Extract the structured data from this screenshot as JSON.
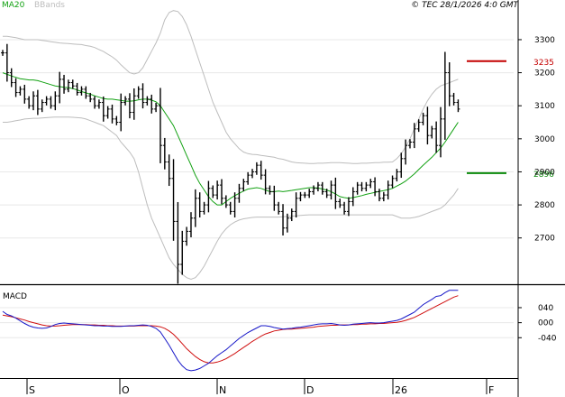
{
  "chart_data": [
    {
      "type": "ohlc",
      "title": "",
      "copyright": "© TEC 28/1/2026 4:0 GMT",
      "legend": [
        {
          "label": "MA20",
          "color": "#12a112"
        },
        {
          "label": "BBands",
          "color": "#bdbdbd"
        }
      ],
      "y_ticks": [
        2700,
        2800,
        2900,
        3000,
        3100,
        3200,
        3300
      ],
      "ylim": [
        2560,
        3420
      ],
      "levels": [
        {
          "label": "3235",
          "value": 3235,
          "color": "#c40000"
        },
        {
          "label": "2896",
          "value": 2896,
          "color": "#0a8a0a"
        }
      ],
      "x_ticks": [
        "S",
        "O",
        "N",
        "D",
        "26",
        "F"
      ],
      "series": [
        {
          "name": "price",
          "color": "#000000",
          "close": [
            3260,
            3200,
            3170,
            3140,
            3150,
            3120,
            3100,
            3130,
            3090,
            3110,
            3120,
            3100,
            3130,
            3180,
            3150,
            3170,
            3160,
            3140,
            3150,
            3130,
            3120,
            3100,
            3110,
            3070,
            3090,
            3060,
            3050,
            3110,
            3120,
            3080,
            3130,
            3150,
            3110,
            3120,
            3090,
            3100,
            2980,
            2930,
            2880,
            2750,
            2620,
            2690,
            2720,
            2760,
            2820,
            2780,
            2800,
            2850,
            2830,
            2860,
            2820,
            2800,
            2780,
            2820,
            2850,
            2870,
            2890,
            2900,
            2920,
            2890,
            2850,
            2840,
            2800,
            2780,
            2730,
            2760,
            2780,
            2820,
            2830,
            2830,
            2840,
            2850,
            2860,
            2840,
            2830,
            2860,
            2810,
            2800,
            2780,
            2810,
            2840,
            2860,
            2850,
            2860,
            2870,
            2840,
            2820,
            2830,
            2860,
            2880,
            2900,
            2940,
            2980,
            2990,
            3030,
            3050,
            3070,
            3010,
            3030,
            2980,
            3060,
            3200,
            3130,
            3110,
            3090
          ]
        },
        {
          "name": "MA20",
          "color": "#12a112",
          "values": [
            3200,
            3195,
            3190,
            3186,
            3182,
            3180,
            3178,
            3178,
            3176,
            3172,
            3168,
            3164,
            3160,
            3158,
            3156,
            3155,
            3152,
            3148,
            3143,
            3139,
            3135,
            3130,
            3126,
            3122,
            3120,
            3120,
            3118,
            3116,
            3114,
            3114,
            3115,
            3118,
            3120,
            3120,
            3117,
            3112,
            3100,
            3080,
            3060,
            3040,
            3010,
            2980,
            2950,
            2920,
            2890,
            2865,
            2845,
            2825,
            2810,
            2800,
            2800,
            2810,
            2820,
            2828,
            2835,
            2842,
            2848,
            2850,
            2852,
            2850,
            2845,
            2840,
            2840,
            2842,
            2840,
            2842,
            2844,
            2846,
            2848,
            2850,
            2852,
            2852,
            2851,
            2848,
            2845,
            2840,
            2833,
            2825,
            2822,
            2820,
            2822,
            2825,
            2828,
            2832,
            2835,
            2838,
            2841,
            2843,
            2846,
            2850,
            2857,
            2864,
            2872,
            2883,
            2894,
            2907,
            2920,
            2932,
            2944,
            2958,
            2972,
            2990,
            3010,
            3030,
            3050
          ]
        },
        {
          "name": "BBands upper",
          "color": "#bdbdbd",
          "values": [
            3310,
            3310,
            3308,
            3306,
            3303,
            3300,
            3300,
            3300,
            3300,
            3298,
            3296,
            3294,
            3292,
            3290,
            3289,
            3288,
            3287,
            3286,
            3285,
            3282,
            3280,
            3276,
            3270,
            3264,
            3256,
            3248,
            3238,
            3224,
            3212,
            3200,
            3196,
            3200,
            3215,
            3240,
            3265,
            3290,
            3320,
            3360,
            3382,
            3388,
            3385,
            3370,
            3345,
            3310,
            3270,
            3230,
            3190,
            3150,
            3110,
            3080,
            3050,
            3020,
            3000,
            2985,
            2970,
            2960,
            2955,
            2953,
            2952,
            2950,
            2948,
            2946,
            2944,
            2940,
            2938,
            2934,
            2930,
            2928,
            2927,
            2926,
            2925,
            2925,
            2926,
            2926,
            2927,
            2928,
            2928,
            2928,
            2927,
            2926,
            2925,
            2925,
            2926,
            2926,
            2927,
            2928,
            2928,
            2929,
            2929,
            2930,
            2940,
            2955,
            2975,
            3000,
            3030,
            3060,
            3090,
            3115,
            3135,
            3150,
            3160,
            3165,
            3170,
            3175,
            3180
          ]
        },
        {
          "name": "BBands lower",
          "color": "#bdbdbd",
          "values": [
            3050,
            3050,
            3052,
            3055,
            3057,
            3060,
            3061,
            3062,
            3062,
            3063,
            3064,
            3065,
            3066,
            3066,
            3066,
            3066,
            3065,
            3064,
            3063,
            3060,
            3055,
            3050,
            3045,
            3040,
            3030,
            3020,
            3010,
            2990,
            2975,
            2960,
            2940,
            2900,
            2850,
            2800,
            2760,
            2730,
            2700,
            2670,
            2640,
            2620,
            2605,
            2590,
            2580,
            2575,
            2580,
            2595,
            2615,
            2640,
            2665,
            2690,
            2712,
            2728,
            2740,
            2748,
            2754,
            2758,
            2760,
            2762,
            2763,
            2763,
            2763,
            2763,
            2763,
            2763,
            2764,
            2765,
            2766,
            2767,
            2768,
            2769,
            2770,
            2770,
            2770,
            2770,
            2770,
            2770,
            2770,
            2770,
            2770,
            2770,
            2770,
            2770,
            2770,
            2770,
            2770,
            2770,
            2770,
            2770,
            2770,
            2770,
            2765,
            2760,
            2760,
            2760,
            2762,
            2765,
            2770,
            2775,
            2780,
            2785,
            2790,
            2800,
            2815,
            2830,
            2850
          ]
        }
      ]
    },
    {
      "type": "line",
      "title": "MACD",
      "y_ticks": [
        40,
        0,
        -40
      ],
      "y_tick_labels": [
        "040",
        "000",
        "-040"
      ],
      "ylim": [
        -145,
        100
      ],
      "series": [
        {
          "name": "MACD",
          "color": "#1818c8",
          "values": [
            30,
            22,
            18,
            12,
            5,
            -2,
            -8,
            -12,
            -14,
            -15,
            -14,
            -10,
            -5,
            -2,
            -1,
            -2,
            -3,
            -4,
            -5,
            -6,
            -7,
            -8,
            -8,
            -9,
            -9,
            -10,
            -10,
            -10,
            -9,
            -8,
            -8,
            -7,
            -6,
            -7,
            -10,
            -15,
            -25,
            -42,
            -60,
            -80,
            -100,
            -115,
            -125,
            -128,
            -126,
            -122,
            -115,
            -108,
            -98,
            -88,
            -80,
            -72,
            -62,
            -52,
            -42,
            -34,
            -26,
            -20,
            -14,
            -8,
            -8,
            -10,
            -13,
            -15,
            -17,
            -16,
            -15,
            -13,
            -12,
            -10,
            -8,
            -6,
            -4,
            -3,
            -3,
            -2,
            -4,
            -6,
            -7,
            -6,
            -4,
            -3,
            -2,
            -1,
            0,
            -1,
            -1,
            0,
            2,
            4,
            6,
            10,
            16,
            22,
            28,
            38,
            48,
            55,
            62,
            70,
            72,
            80,
            86,
            86,
            86
          ]
        },
        {
          "name": "Signal",
          "color": "#d01010",
          "values": [
            20,
            18,
            16,
            13,
            10,
            7,
            3,
            0,
            -3,
            -6,
            -8,
            -9,
            -9,
            -8,
            -7,
            -6,
            -5,
            -5,
            -5,
            -5,
            -6,
            -6,
            -7,
            -7,
            -8,
            -8,
            -9,
            -9,
            -9,
            -9,
            -9,
            -8,
            -8,
            -8,
            -8,
            -9,
            -11,
            -15,
            -22,
            -31,
            -43,
            -56,
            -69,
            -80,
            -90,
            -98,
            -104,
            -107,
            -107,
            -105,
            -101,
            -96,
            -89,
            -82,
            -74,
            -66,
            -58,
            -50,
            -43,
            -36,
            -30,
            -26,
            -22,
            -20,
            -18,
            -17,
            -17,
            -16,
            -15,
            -14,
            -13,
            -12,
            -10,
            -9,
            -8,
            -7,
            -7,
            -6,
            -6,
            -6,
            -5,
            -5,
            -4,
            -4,
            -3,
            -3,
            -2,
            -2,
            -1,
            0,
            1,
            3,
            6,
            10,
            14,
            20,
            26,
            32,
            38,
            44,
            50,
            56,
            62,
            68,
            72
          ]
        }
      ]
    }
  ]
}
